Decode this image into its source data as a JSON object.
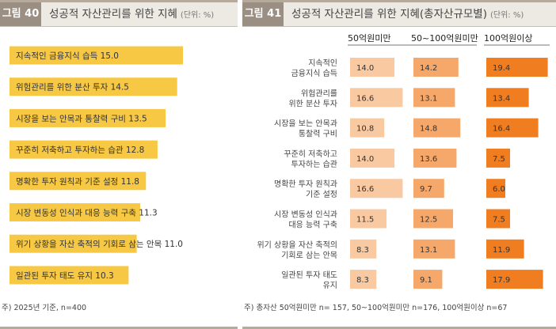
{
  "fig40": {
    "label": "그림 40",
    "title": "성공적 자산관리를 위한 지혜",
    "unit": "(단위: %)",
    "note": "주) 2025년 기준, n=400"
  },
  "fig41": {
    "label": "그림 41",
    "title": "성공적 자산관리를 위한 지혜(총자산규모별)",
    "unit": "(단위: %)",
    "note": "주) 총자산 50억원미만 n= 157, 50~100억원미만 n=176, 100억원이상 n=67"
  },
  "chart_data": [
    {
      "type": "bar",
      "orientation": "horizontal",
      "title": "성공적 자산관리를 위한 지혜",
      "unit": "%",
      "color": "#f7c844",
      "xlim": [
        0,
        20
      ],
      "categories": [
        "지속적인 금융지식 습득",
        "위험관리를 위한 분산 투자",
        "시장을 보는 안목과 통찰력 구비",
        "꾸준히 저축하고 투자하는 습관",
        "명확한 투자 원칙과 기준 설정",
        "시장 변동성 인식과 대응 능력 구축",
        "위기 상황을 자산 축적의 기회로 삼는 안목",
        "일관된 투자 태도 유지"
      ],
      "values": [
        15.0,
        14.5,
        13.5,
        12.8,
        11.8,
        11.3,
        11.0,
        10.3
      ]
    },
    {
      "type": "bar",
      "orientation": "horizontal",
      "title": "성공적 자산관리를 위한 지혜(총자산규모별)",
      "unit": "%",
      "xlim": [
        0,
        20
      ],
      "categories": [
        [
          "지속적인",
          "금융지식 습득"
        ],
        [
          "위험관리를",
          "위한 분산 투자"
        ],
        [
          "시장을 보는 안목과",
          "통찰력 구비"
        ],
        [
          "꾸준히 저축하고",
          "투자하는 습관"
        ],
        [
          "명확한 투자 원칙과",
          "기준 설정"
        ],
        [
          "시장 변동성 인식과",
          "대응 능력 구축"
        ],
        [
          "위기 상황을 자산 축적의",
          "기회로 삼는 안목"
        ],
        [
          "일관된 투자 태도",
          "유지"
        ]
      ],
      "series": [
        {
          "name": "50억원미만",
          "color": "#f9c9a2",
          "values": [
            14.0,
            16.6,
            10.8,
            14.0,
            16.6,
            11.5,
            8.3,
            8.3
          ]
        },
        {
          "name": "50~100억원미만",
          "color": "#f6a86a",
          "values": [
            14.2,
            13.1,
            14.8,
            13.6,
            9.7,
            12.5,
            13.1,
            9.1
          ]
        },
        {
          "name": "100억원이상",
          "color": "#f07d1f",
          "values": [
            19.4,
            13.4,
            16.4,
            7.5,
            6.0,
            7.5,
            11.9,
            17.9
          ]
        }
      ]
    }
  ]
}
